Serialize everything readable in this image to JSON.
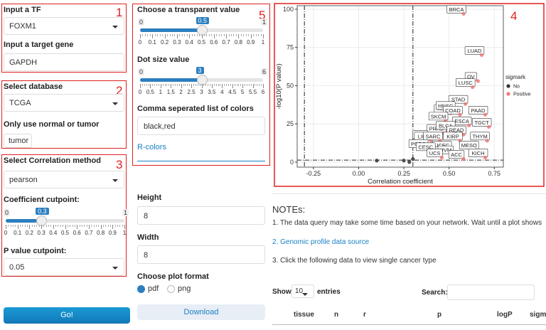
{
  "panel_numbers": [
    "1",
    "2",
    "3",
    "4",
    "5"
  ],
  "tf": {
    "label": "Input a TF",
    "value": "FOXM1"
  },
  "gene": {
    "label": "Input a target gene",
    "value": "GAPDH"
  },
  "database": {
    "label": "Select database",
    "value": "TCGA"
  },
  "sample": {
    "label": "Only use normal or tumor",
    "value": "tumor"
  },
  "method": {
    "label": "Select Correlation method",
    "value": "pearson"
  },
  "coef": {
    "label": "Coefficient cutpoint:",
    "min": 0,
    "max": 1,
    "value": 0.3,
    "ticks": [
      0,
      0.1,
      0.2,
      0.3,
      0.4,
      0.5,
      0.6,
      0.7,
      0.8,
      0.9,
      1
    ]
  },
  "pval": {
    "label": "P value cutpoint:",
    "value": "0.05"
  },
  "go": "Go!",
  "alpha": {
    "label": "Choose a transparent value",
    "min": 0,
    "max": 1,
    "value": 0.5,
    "ticks": [
      0,
      0.1,
      0.2,
      0.3,
      0.4,
      0.5,
      0.6,
      0.7,
      0.8,
      0.9,
      1
    ]
  },
  "dot": {
    "label": "Dot size value",
    "min": 0,
    "max": 6,
    "value": 3,
    "ticks": [
      0,
      0.5,
      1,
      1.5,
      2,
      2.5,
      3,
      3.5,
      4,
      4.5,
      5,
      5.5,
      6
    ]
  },
  "colors": {
    "label": "Comma seperated list of colors",
    "value": "black,red"
  },
  "rcolors": "R-colors",
  "height": {
    "label": "Height",
    "value": "8"
  },
  "width": {
    "label": "Width",
    "value": "8"
  },
  "format": {
    "label": "Choose plot format",
    "options": [
      "pdf",
      "png"
    ],
    "selected": 0
  },
  "download": "Download",
  "notes": {
    "title": "NOTEs:",
    "items": [
      "1. The data query may take some time based on your network. Wait until a plot shows",
      "2. Genomic profile data source",
      "3. Click the following data to view single cancer type"
    ]
  },
  "table": {
    "show": "Show",
    "length": "10",
    "entries": "entries",
    "search": "Search:",
    "columns": [
      "tissue",
      "n",
      "r",
      "p",
      "logP",
      "sigma"
    ]
  },
  "chart_data": {
    "type": "scatter",
    "x_label": "Correlation coefficient",
    "y_label": "-log10(P value)",
    "xlim": [
      -0.34,
      0.8
    ],
    "ylim": [
      -3.3,
      102.3
    ],
    "xticks": [
      -0.25,
      {
        "value": 0,
        "label": "0.00"
      },
      0.25,
      {
        "value": 0.5,
        "label": "0.50"
      },
      0.75
    ],
    "yticks": [
      0,
      25,
      50,
      75,
      100
    ],
    "grid": true,
    "vlines": [
      -0.3,
      0.3
    ],
    "hline": 1.3,
    "legend_title": "sigmark",
    "series": [
      {
        "name": "No",
        "color": "#333333",
        "x": [
          0.1,
          0.25,
          0.28,
          0.3
        ],
        "values": [
          1,
          1,
          0,
          2
        ]
      },
      {
        "name": "Positive",
        "color": "#f07878",
        "x": [
          0.58,
          0.68,
          0.66,
          0.63,
          0.59,
          0.51,
          0.52,
          0.56,
          0.7,
          0.48,
          0.61,
          0.47,
          0.52,
          0.72,
          0.58,
          0.38,
          0.4,
          0.45,
          0.56,
          0.71,
          0.5,
          0.37,
          0.41,
          0.65,
          0.52,
          0.46,
          0.58,
          0.7
        ],
        "values": [
          97,
          70,
          53,
          49,
          38,
          32,
          34,
          31,
          31,
          27,
          24,
          19,
          21,
          23,
          18,
          15,
          14,
          14,
          14,
          14,
          8,
          9,
          7,
          8,
          5,
          3,
          2,
          3
        ],
        "labels": [
          "BRCA",
          "LUAD",
          "OV",
          "LUSC",
          "STAD",
          "KIRC",
          "HNSC",
          "COAD",
          "PAAD",
          "SKCM",
          "ESCA",
          "PRAD",
          "BLCA",
          "TGCT",
          "READ",
          "LGG",
          "LIHC",
          "SARC",
          "KIRP",
          "THYM",
          "UCEC",
          "PCPG",
          "CESC",
          "MESO",
          "UVM",
          "UCS",
          "ACC",
          "KICH"
        ]
      }
    ]
  }
}
